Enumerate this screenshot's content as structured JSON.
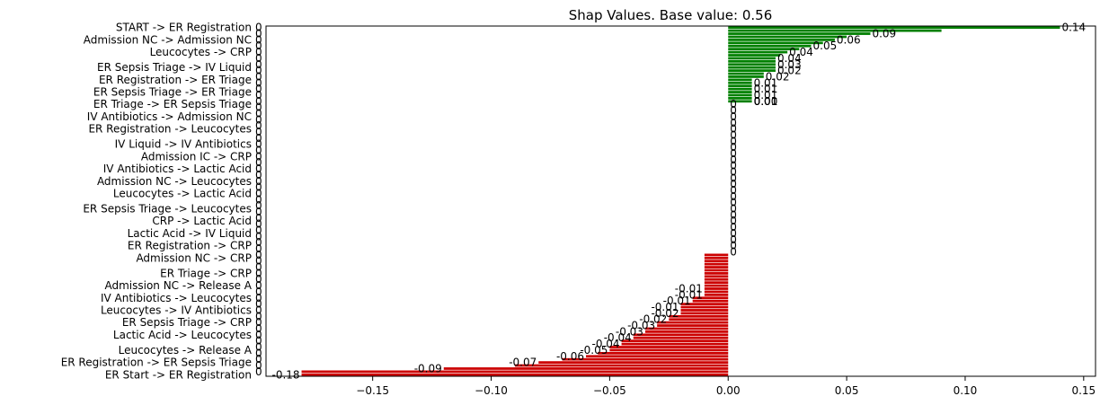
{
  "chart_data": {
    "type": "bar",
    "orientation": "horizontal",
    "title": "Shap Values. Base value: 0.56",
    "xlabel": "",
    "ylabel": "",
    "xlim": [
      -0.195,
      0.155
    ],
    "xticks": [
      -0.15,
      -0.1,
      -0.05,
      0.0,
      0.05,
      0.1,
      0.15
    ],
    "xtick_labels": [
      "−0.15",
      "−0.10",
      "−0.05",
      "0.00",
      "0.05",
      "0.10",
      "0.15"
    ],
    "grid": false,
    "colors": {
      "positive": "#008000",
      "negative": "#cc0000"
    },
    "bar_count": 114,
    "feature_labels_first_row_to_last": [
      "START -> ER Registration",
      "Admission NC -> Admission NC",
      "Leucocytes -> CRP",
      "ER Sepsis Triage -> IV Liquid",
      "ER Registration -> ER Triage",
      "ER Sepsis Triage -> ER Triage",
      "ER Triage -> ER Sepsis Triage",
      "IV Antibiotics -> Admission NC",
      "ER Registration -> Leucocytes",
      "IV Liquid -> IV Antibiotics",
      "Admission IC -> CRP",
      "IV Antibiotics -> Lactic Acid",
      "Admission NC -> Leucocytes",
      "Leucocytes -> Lactic Acid",
      "ER Sepsis Triage -> Leucocytes",
      "CRP -> Lactic Acid",
      "Lactic Acid -> IV Liquid",
      "ER Registration -> CRP",
      "Admission NC -> CRP",
      "ER Triage -> CRP",
      "Admission NC -> Release A",
      "IV Antibiotics -> Leucocytes",
      "Leucocytes -> IV Antibiotics",
      "ER Sepsis Triage -> CRP",
      "Lactic Acid -> Leucocytes",
      "Leucocytes -> Release A",
      "ER Registration -> ER Sepsis Triage",
      "ER Start -> ER Registration"
    ],
    "value_labels_positive": [
      "0.14",
      "0.09",
      "0.06",
      "0.05",
      "0.04",
      "0.04",
      "0.03",
      "0.02",
      "0.02",
      "0.01",
      "0.01",
      "0.01",
      "0.01",
      "0.01",
      "0.00"
    ],
    "value_labels_negative": [
      "-0.01",
      "-0.01",
      "-0.01",
      "-0.01",
      "-0.02",
      "-0.02",
      "-0.03",
      "-0.03",
      "-0.04",
      "-0.04",
      "-0.05",
      "-0.06",
      "-0.07",
      "-0.09",
      "-0.18"
    ],
    "positive_values": [
      0.14,
      0.09,
      0.06,
      0.05,
      0.045,
      0.04,
      0.035,
      0.03,
      0.025,
      0.022,
      0.02,
      0.02,
      0.02,
      0.02,
      0.02,
      0.015,
      0.015,
      0.01,
      0.01,
      0.01,
      0.01,
      0.01,
      0.01,
      0.01,
      0.01
    ],
    "zero_count": 49,
    "negative_values_from_small_to_large": [
      -0.01,
      -0.01,
      -0.01,
      -0.01,
      -0.01,
      -0.01,
      -0.01,
      -0.01,
      -0.01,
      -0.01,
      -0.01,
      -0.01,
      -0.01,
      -0.01,
      -0.015,
      -0.015,
      -0.02,
      -0.02,
      -0.02,
      -0.02,
      -0.025,
      -0.025,
      -0.03,
      -0.03,
      -0.035,
      -0.035,
      -0.04,
      -0.04,
      -0.045,
      -0.045,
      -0.05,
      -0.05,
      -0.055,
      -0.06,
      -0.07,
      -0.08,
      -0.09,
      -0.12,
      -0.18,
      -0.18
    ]
  }
}
